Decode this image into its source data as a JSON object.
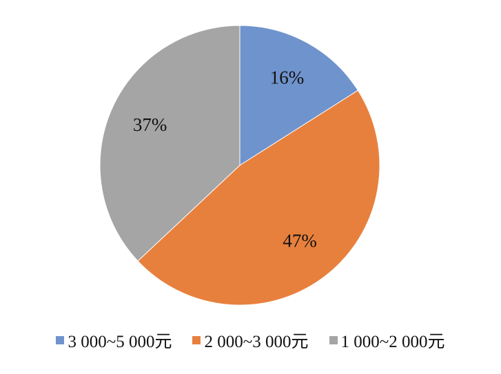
{
  "chart_data": {
    "type": "pie",
    "categories": [
      "3 000~5 000元",
      "2 000~3 000元",
      "1 000~2 000元"
    ],
    "values": [
      16,
      47,
      37
    ],
    "value_labels": [
      "16%",
      "47%",
      "37%"
    ],
    "colors": [
      "#6f93cc",
      "#e8803d",
      "#a5a5a5"
    ],
    "legend": "bottom"
  }
}
